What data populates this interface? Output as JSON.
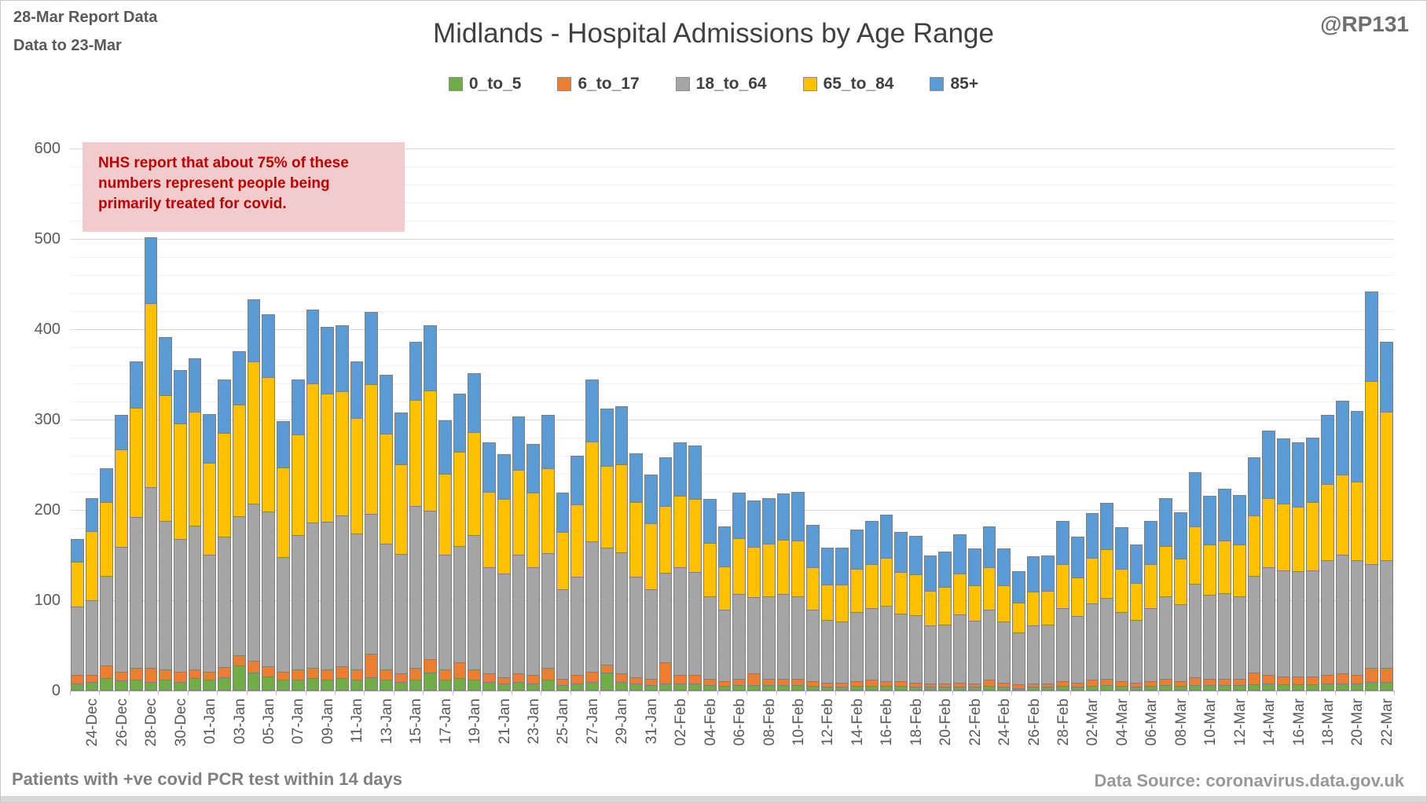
{
  "header": {
    "report_line1": "28-Mar Report Data",
    "report_line2": "Data to 23-Mar",
    "handle": "@RP131"
  },
  "annotation": {
    "lines": [
      "NHS report that about 75% of these",
      "numbers represent people being",
      "primarily treated for covid."
    ],
    "bg_color": "#F2CCCC",
    "text_color": "#C00000"
  },
  "footer": {
    "left": "Patients with  +ve covid PCR test within 14 days",
    "right": "Data Source: coronavirus.data.gov.uk"
  },
  "chart_data": {
    "type": "bar",
    "stacked": true,
    "title": "Midlands - Hospital Admissions by Age Range",
    "xlabel": "",
    "ylabel": "",
    "ylim": [
      0,
      600
    ],
    "ytick_step": 100,
    "minor_grid_step": 20,
    "grid": true,
    "legend_position": "top",
    "x_label_every": 2,
    "categories": [
      "24-Dec",
      "25-Dec",
      "26-Dec",
      "27-Dec",
      "28-Dec",
      "29-Dec",
      "30-Dec",
      "31-Dec",
      "01-Jan",
      "02-Jan",
      "03-Jan",
      "04-Jan",
      "05-Jan",
      "06-Jan",
      "07-Jan",
      "08-Jan",
      "09-Jan",
      "10-Jan",
      "11-Jan",
      "12-Jan",
      "13-Jan",
      "14-Jan",
      "15-Jan",
      "16-Jan",
      "17-Jan",
      "18-Jan",
      "19-Jan",
      "20-Jan",
      "21-Jan",
      "22-Jan",
      "23-Jan",
      "24-Jan",
      "25-Jan",
      "26-Jan",
      "27-Jan",
      "28-Jan",
      "29-Jan",
      "30-Jan",
      "31-Jan",
      "01-Feb",
      "02-Feb",
      "03-Feb",
      "04-Feb",
      "05-Feb",
      "06-Feb",
      "07-Feb",
      "08-Feb",
      "09-Feb",
      "10-Feb",
      "11-Feb",
      "12-Feb",
      "13-Feb",
      "14-Feb",
      "15-Feb",
      "16-Feb",
      "17-Feb",
      "18-Feb",
      "19-Feb",
      "20-Feb",
      "21-Feb",
      "22-Feb",
      "23-Feb",
      "24-Feb",
      "25-Feb",
      "26-Feb",
      "27-Feb",
      "28-Feb",
      "01-Mar",
      "02-Mar",
      "03-Mar",
      "04-Mar",
      "05-Mar",
      "06-Mar",
      "07-Mar",
      "08-Mar",
      "09-Mar",
      "10-Mar",
      "11-Mar",
      "12-Mar",
      "13-Mar",
      "14-Mar",
      "15-Mar",
      "16-Mar",
      "17-Mar",
      "18-Mar",
      "19-Mar",
      "20-Mar",
      "21-Mar",
      "22-Mar",
      "23-Mar"
    ],
    "series": [
      {
        "name": "0_to_5",
        "color": "#70AD47",
        "values": [
          8,
          10,
          14,
          11,
          12,
          10,
          12,
          10,
          14,
          12,
          15,
          28,
          20,
          16,
          12,
          12,
          14,
          12,
          14,
          12,
          15,
          12,
          10,
          12,
          20,
          12,
          14,
          12,
          10,
          8,
          10,
          8,
          12,
          6,
          8,
          10,
          20,
          10,
          8,
          6,
          8,
          8,
          8,
          6,
          5,
          6,
          6,
          6,
          6,
          6,
          5,
          4,
          4,
          5,
          5,
          5,
          5,
          4,
          4,
          4,
          4,
          4,
          5,
          4,
          3,
          4,
          4,
          5,
          4,
          5,
          6,
          5,
          4,
          5,
          6,
          5,
          6,
          6,
          6,
          6,
          7,
          8,
          7,
          7,
          7,
          8,
          8,
          8,
          10,
          10
        ]
      },
      {
        "name": "6_to_17",
        "color": "#ED7D31",
        "values": [
          10,
          8,
          15,
          11,
          14,
          16,
          12,
          12,
          10,
          10,
          12,
          12,
          14,
          12,
          10,
          12,
          12,
          12,
          14,
          12,
          27,
          12,
          10,
          14,
          16,
          12,
          18,
          12,
          10,
          8,
          10,
          10,
          14,
          8,
          10,
          12,
          10,
          10,
          8,
          8,
          24,
          10,
          10,
          8,
          6,
          8,
          14,
          8,
          8,
          8,
          6,
          6,
          6,
          6,
          8,
          6,
          6,
          6,
          5,
          5,
          6,
          5,
          8,
          6,
          5,
          5,
          5,
          6,
          6,
          8,
          8,
          6,
          6,
          6,
          8,
          6,
          10,
          8,
          8,
          8,
          14,
          10,
          10,
          10,
          10,
          10,
          12,
          10,
          16,
          16
        ]
      },
      {
        "name": "18_to_64",
        "color": "#A5A5A5",
        "values": [
          77,
          84,
          100,
          139,
          168,
          201,
          166,
          148,
          160,
          130,
          145,
          155,
          175,
          172,
          128,
          150,
          162,
          165,
          168,
          152,
          155,
          140,
          133,
          180,
          165,
          128,
          130,
          150,
          118,
          115,
          132,
          120,
          128,
          100,
          110,
          145,
          130,
          135,
          112,
          100,
          100,
          120,
          115,
          92,
          80,
          95,
          85,
          92,
          95,
          92,
          80,
          70,
          68,
          78,
          80,
          85,
          76,
          75,
          65,
          66,
          76,
          70,
          78,
          68,
          58,
          65,
          66,
          82,
          74,
          85,
          90,
          78,
          70,
          82,
          92,
          86,
          104,
          94,
          96,
          92,
          108,
          120,
          118,
          117,
          118,
          128,
          132,
          128,
          116,
          120
        ]
      },
      {
        "name": "65_to_84",
        "color": "#FFC000",
        "values": [
          50,
          77,
          82,
          109,
          122,
          204,
          140,
          128,
          127,
          103,
          116,
          124,
          158,
          150,
          100,
          112,
          155,
          142,
          138,
          128,
          145,
          123,
          100,
          118,
          134,
          91,
          105,
          115,
          85,
          84,
          95,
          84,
          95,
          64,
          81,
          111,
          91,
          98,
          83,
          74,
          75,
          80,
          82,
          60,
          49,
          62,
          57,
          59,
          61,
          63,
          48,
          40,
          42,
          48,
          50,
          54,
          47,
          46,
          39,
          42,
          46,
          40,
          48,
          41,
          34,
          38,
          38,
          50,
          44,
          52,
          55,
          48,
          42,
          50,
          57,
          52,
          64,
          56,
          59,
          58,
          68,
          78,
          75,
          72,
          76,
          85,
          90,
          88,
          203,
          165
        ]
      },
      {
        "name": "85+",
        "color": "#5B9BD5",
        "values": [
          26,
          38,
          39,
          39,
          52,
          74,
          65,
          60,
          60,
          55,
          60,
          60,
          70,
          70,
          52,
          62,
          82,
          75,
          74,
          64,
          81,
          66,
          58,
          66,
          73,
          60,
          65,
          66,
          55,
          50,
          60,
          55,
          60,
          45,
          55,
          70,
          65,
          65,
          55,
          55,
          55,
          60,
          60,
          50,
          45,
          52,
          52,
          52,
          52,
          55,
          48,
          42,
          42,
          45,
          48,
          48,
          45,
          44,
          40,
          40,
          45,
          42,
          46,
          42,
          36,
          40,
          40,
          48,
          46,
          50,
          52,
          47,
          43,
          48,
          54,
          52,
          61,
          55,
          58,
          56,
          65,
          75,
          73,
          72,
          73,
          78,
          82,
          79,
          100,
          79
        ]
      }
    ]
  }
}
